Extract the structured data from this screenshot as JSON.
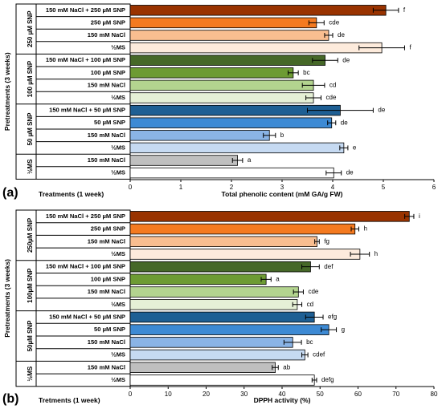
{
  "chart_data": [
    {
      "type": "bar",
      "orientation": "horizontal",
      "panel_label": "(a)",
      "xlabel": "Total phenolic content (mM GA/g FW)",
      "treatments_label": "Treatments  (1 week)",
      "pretreatments_label": "Pretreatments (3 weeks)",
      "xlim": [
        0,
        6
      ],
      "xticks": [
        "0",
        "1",
        "2",
        "3",
        "4",
        "5",
        "6"
      ],
      "groups": [
        {
          "label": "250 µM SNP",
          "rows": [
            0,
            1,
            2,
            3
          ]
        },
        {
          "label": "100 µM SNP",
          "rows": [
            4,
            5,
            6,
            7
          ]
        },
        {
          "label": "50 µM SNP",
          "rows": [
            8,
            9,
            10,
            11
          ]
        },
        {
          "label": "½MS",
          "rows": [
            12,
            13
          ]
        }
      ],
      "categories": [
        "150 mM NaCl + 250 µM SNP",
        "250 µM SNP",
        "150 mM NaCl",
        "½MS",
        "150 mM NaCl + 100 µM SNP",
        "100 µM SNP",
        "150 mM NaCl",
        "½MS",
        "150 mM NaCl + 50 µM SNP",
        "50 µM SNP",
        "150 mM NaCl",
        "½MS",
        "150 mM NaCl",
        "½MS"
      ],
      "values": [
        5.05,
        3.68,
        3.92,
        4.97,
        3.85,
        3.22,
        3.62,
        3.62,
        4.15,
        3.98,
        2.75,
        4.22,
        2.12,
        4.02
      ],
      "errors": [
        0.25,
        0.15,
        0.08,
        0.45,
        0.25,
        0.1,
        0.22,
        0.15,
        0.65,
        0.08,
        0.12,
        0.08,
        0.1,
        0.15
      ],
      "letters": [
        "f",
        "cde",
        "de",
        "f",
        "de",
        "bc",
        "cd",
        "cde",
        "de",
        "de",
        "b",
        "e",
        "a",
        "de"
      ],
      "colors": [
        "#993300",
        "#F47A20",
        "#F9BE90",
        "#FDEBDC",
        "#466828",
        "#6D9B33",
        "#B3D48F",
        "#E5F0D6",
        "#1E5F94",
        "#3D8AD4",
        "#8AB4E6",
        "#C6DAF2",
        "#BFBFBF",
        "#FFFFFF"
      ]
    },
    {
      "type": "bar",
      "orientation": "horizontal",
      "panel_label": "(b)",
      "xlabel": "DPPH activity (%)",
      "treatments_label": "Tretments (1 week)",
      "pretreatments_label": "Pretreatments (3 weeks)",
      "xlim": [
        0,
        80
      ],
      "xticks": [
        "0",
        "10",
        "20",
        "30",
        "40",
        "50",
        "60",
        "70",
        "80"
      ],
      "groups": [
        {
          "label": "250µM SNP",
          "rows": [
            0,
            1,
            2,
            3
          ]
        },
        {
          "label": "100µM SNP",
          "rows": [
            4,
            5,
            6,
            7
          ]
        },
        {
          "label": "50µM SNP",
          "rows": [
            8,
            9,
            10,
            11
          ]
        },
        {
          "label": "½MS",
          "rows": [
            12,
            13
          ]
        }
      ],
      "categories": [
        "150 mM NaCl + 250 µM SNP",
        "250 µM SNP",
        "150 mM NaCl",
        "½MS",
        "150 mM NaCl + 100 µM SNP",
        "100 µM SNP",
        "150 mM NaCl",
        "½MS",
        "150 mM NaCl + 50 µM SNP",
        "50 µM SNP",
        "150 mM NaCl",
        "½MS",
        "150 mM NaCl",
        "½MS"
      ],
      "values": [
        73.5,
        59.2,
        49.2,
        60.5,
        47.5,
        35.8,
        44.3,
        44.0,
        48.5,
        52.3,
        42.8,
        46.0,
        38.2,
        48.5
      ],
      "errors": [
        1.2,
        1.0,
        0.6,
        2.5,
        2.3,
        1.3,
        1.3,
        1.2,
        2.3,
        2.0,
        2.3,
        0.8,
        0.8,
        0.6
      ],
      "letters": [
        "i",
        "h",
        "fg",
        "h",
        "def",
        "a",
        "cde",
        "cd",
        "efg",
        "g",
        "bc",
        "cdef",
        "ab",
        "defg"
      ],
      "colors": [
        "#993300",
        "#F47A20",
        "#F9BE90",
        "#FDEBDC",
        "#466828",
        "#6D9B33",
        "#B3D48F",
        "#E5F0D6",
        "#1E5F94",
        "#3D8AD4",
        "#8AB4E6",
        "#C6DAF2",
        "#BFBFBF",
        "#FFFFFF"
      ]
    }
  ]
}
